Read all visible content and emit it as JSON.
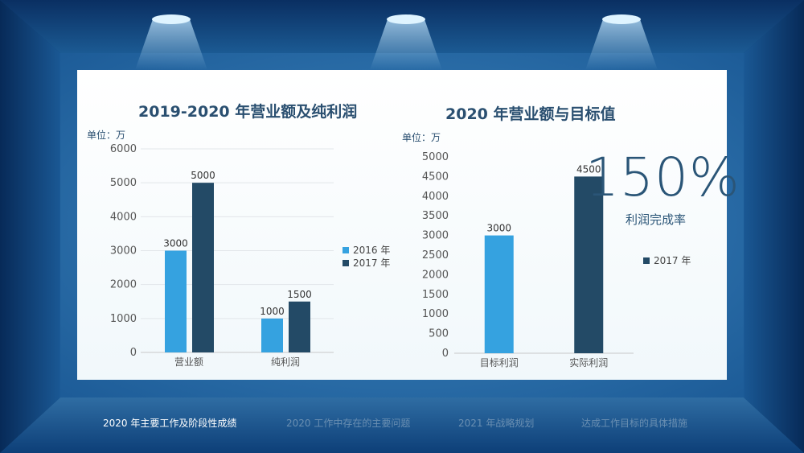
{
  "colors": {
    "c2016": "#35a2e0",
    "c2017": "#234a66",
    "title": "#2a4f70",
    "nav_active": "#ffffff",
    "nav_inactive": "#6a8fb2"
  },
  "chart_data": [
    {
      "type": "bar",
      "title": "2019-2020 年营业额及纯利润",
      "unit": "单位：万",
      "categories": [
        "营业额",
        "纯利润"
      ],
      "series": [
        {
          "name": "2016 年",
          "values": [
            3000,
            1000
          ]
        },
        {
          "name": "2017 年",
          "values": [
            5000,
            1500
          ]
        }
      ],
      "yticks": [
        0,
        1000,
        2000,
        3000,
        4000,
        5000,
        6000
      ],
      "ylim": [
        0,
        6000
      ],
      "grid": true,
      "legend": "right"
    },
    {
      "type": "bar",
      "title": "2020 年营业额与目标值",
      "unit": "单位：万",
      "categories": [
        "目标利润",
        "实际利润"
      ],
      "values": [
        3000,
        4500
      ],
      "data_labels": [
        "3000",
        "4500"
      ],
      "series": [
        {
          "name": "2017 年"
        }
      ],
      "yticks": [
        0,
        500,
        1000,
        1500,
        2000,
        2500,
        3000,
        3500,
        4000,
        4500,
        5000
      ],
      "ylim": [
        0,
        5000
      ],
      "grid": false,
      "legend": "right"
    }
  ],
  "highlight": {
    "value": "150%",
    "label": "利润完成率"
  },
  "nav": {
    "items": [
      "2020 年主要工作及阶段性成绩",
      "2020 工作中存在的主要问题",
      "2021 年战略规划",
      "达成工作目标的具体措施"
    ]
  }
}
